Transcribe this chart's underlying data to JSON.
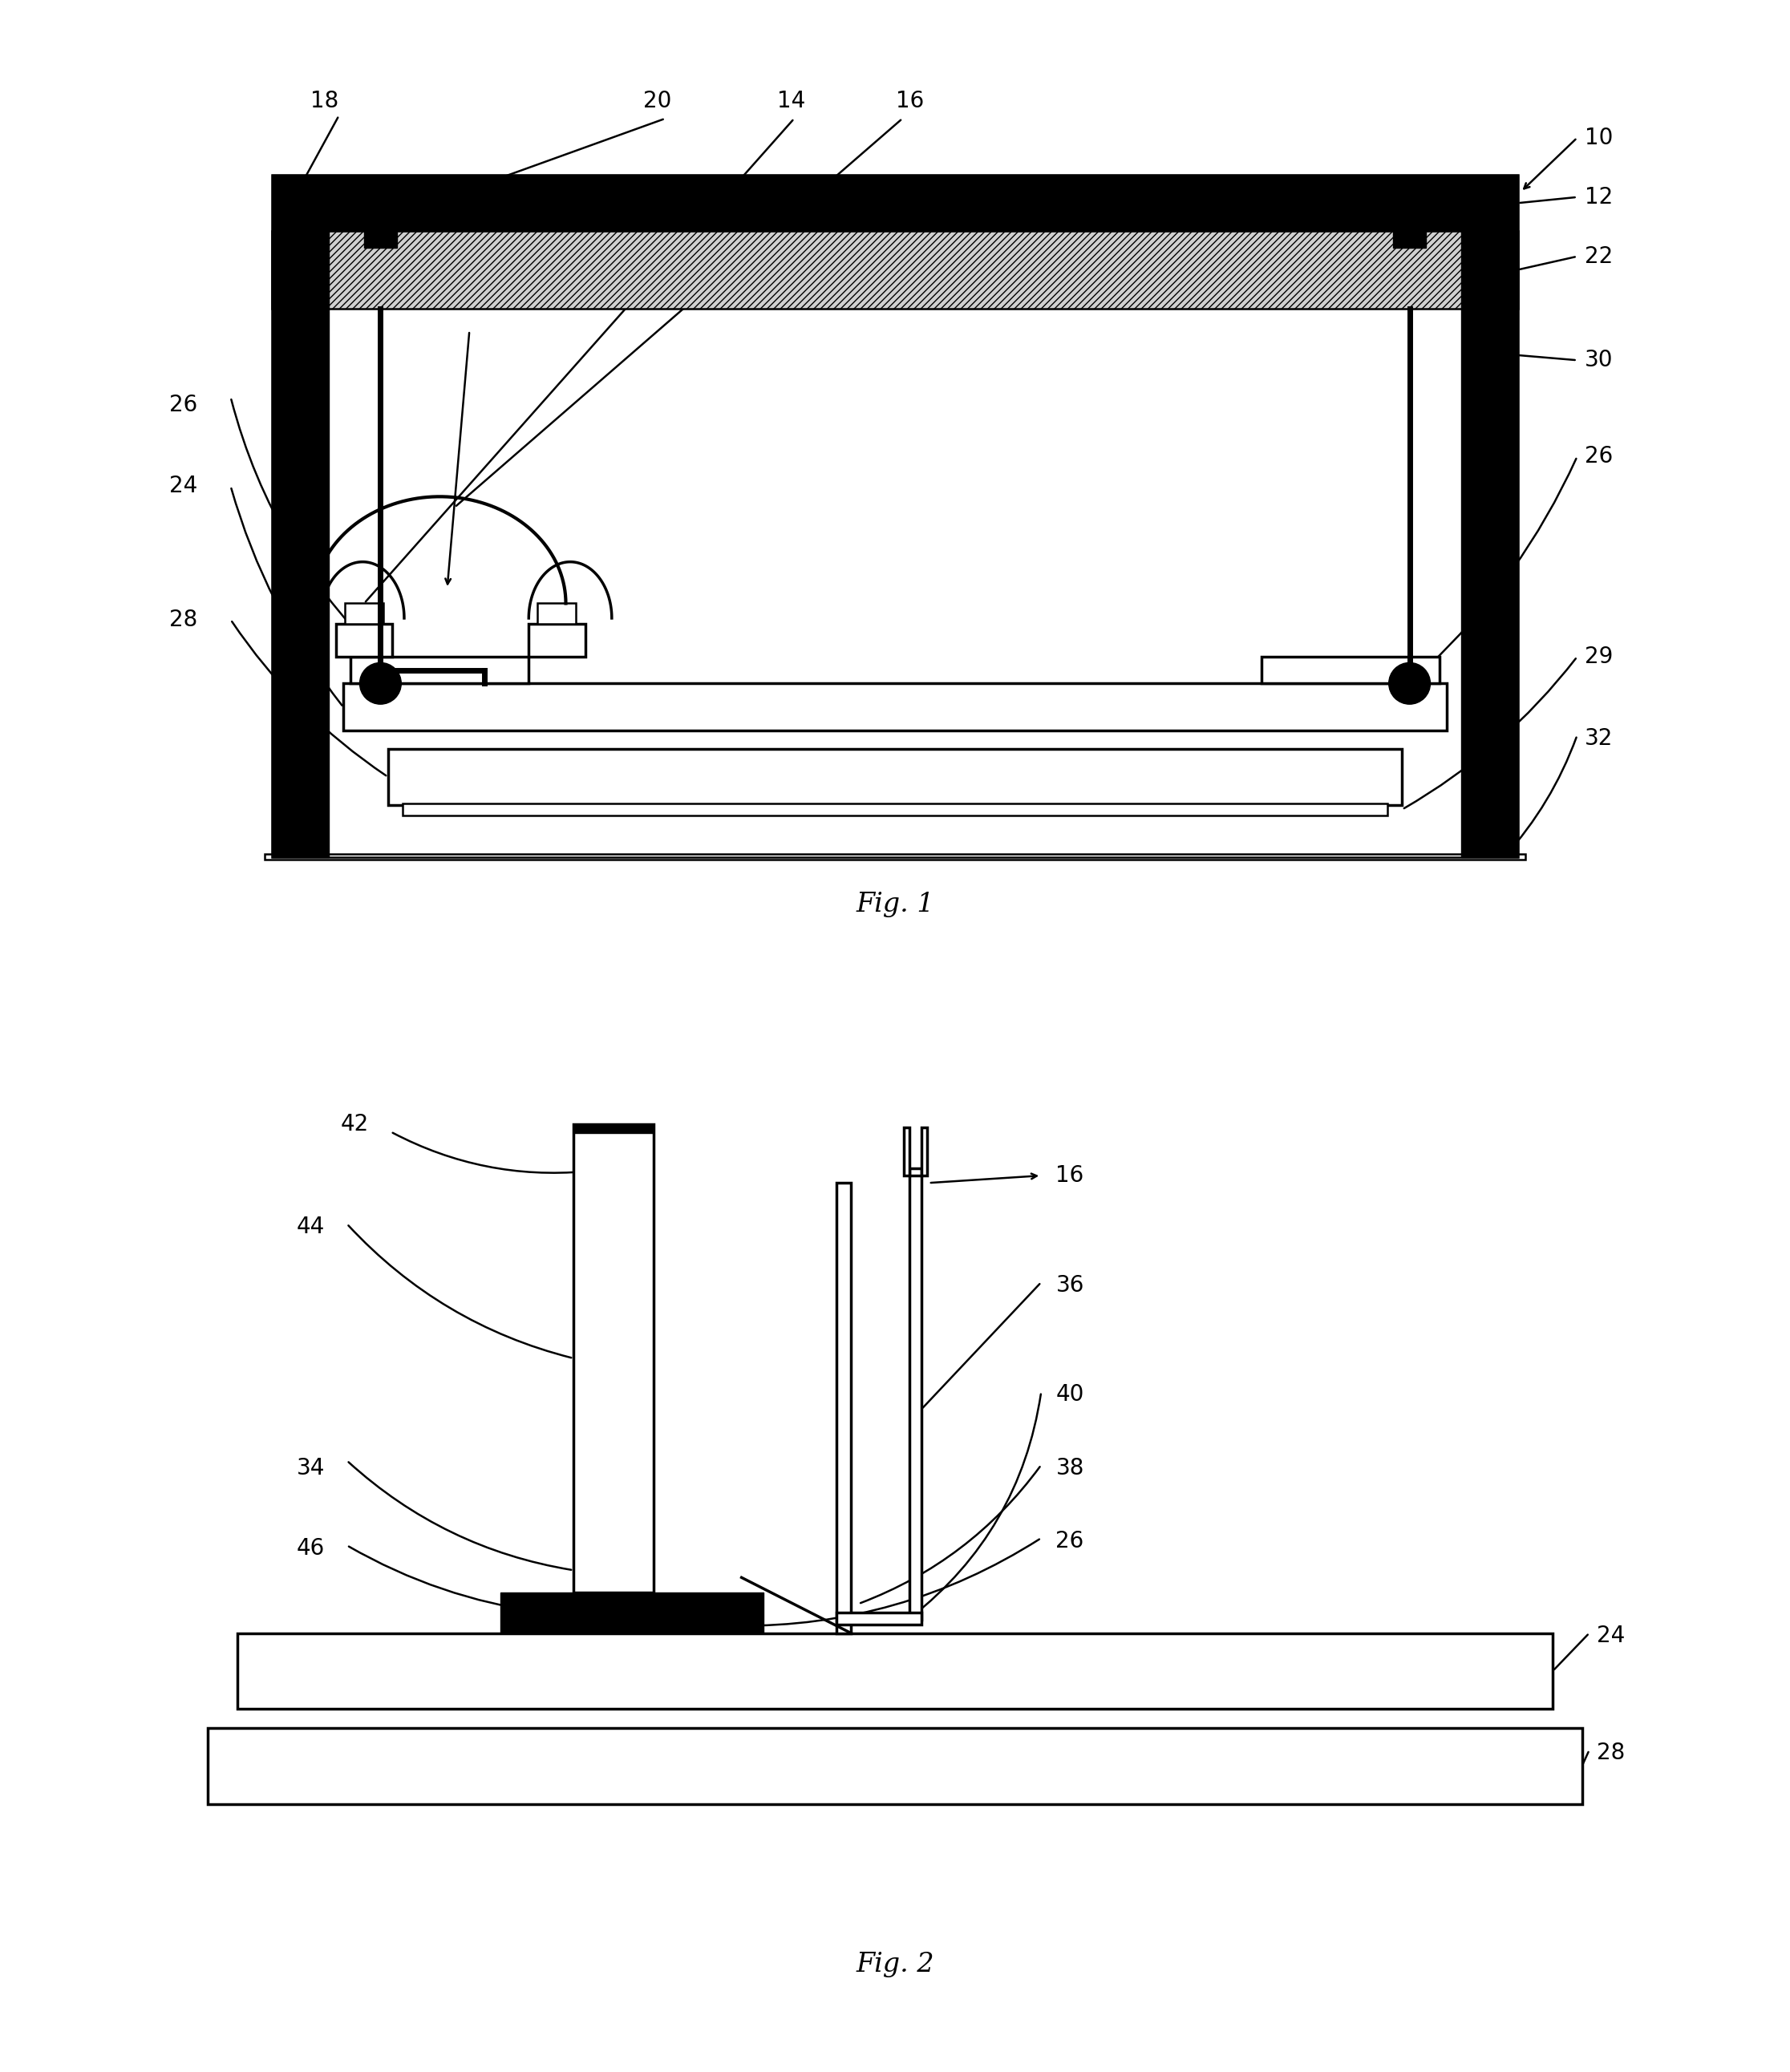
{
  "bg": "#ffffff",
  "lc": "#000000",
  "fig1_caption": "Fig. 1",
  "fig2_caption": "Fig. 2",
  "lw_thick": 5.0,
  "lw_med": 2.5,
  "lw_thin": 1.8,
  "fs_label": 20
}
